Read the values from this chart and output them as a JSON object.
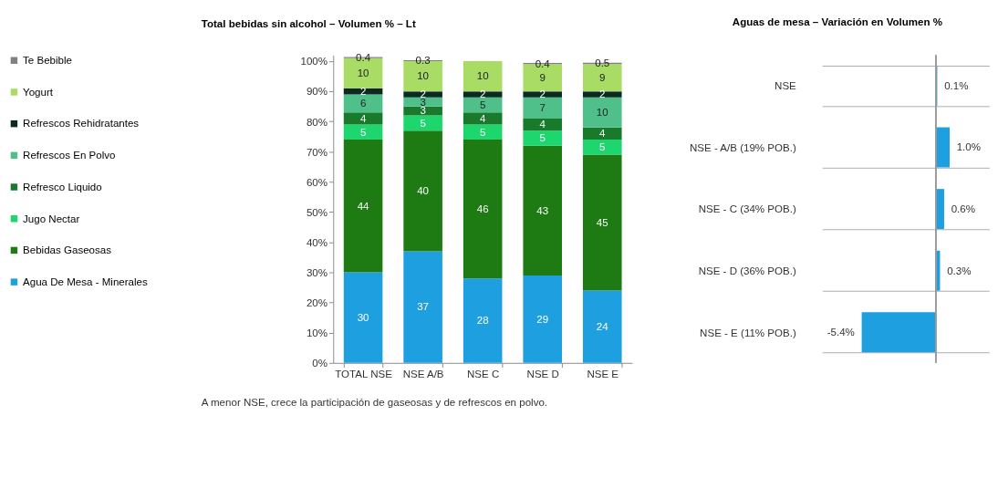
{
  "chart_data": [
    {
      "type": "bar",
      "stacked": true,
      "title": "Total bebidas sin alcohol – Volumen % – Lt",
      "categories": [
        "TOTAL NSE",
        "NSE A/B",
        "NSE C",
        "NSE D",
        "NSE E"
      ],
      "series": [
        {
          "name": "Agua De Mesa - Minerales",
          "color": "#1ea0e0",
          "values": [
            30,
            37,
            28,
            29,
            24
          ]
        },
        {
          "name": "Bebidas Gaseosas",
          "color": "#1e7b14",
          "values": [
            44,
            40,
            46,
            43,
            45
          ]
        },
        {
          "name": "Jugo Nectar",
          "color": "#1ed66e",
          "values": [
            5,
            5,
            5,
            5,
            5
          ]
        },
        {
          "name": "Refresco Liquido",
          "color": "#187a2a",
          "values": [
            4,
            3,
            4,
            4,
            4
          ]
        },
        {
          "name": "Refrescos En Polvo",
          "color": "#50c08a",
          "values": [
            6,
            3,
            5,
            7,
            10
          ]
        },
        {
          "name": "Refrescos Rehidratantes",
          "color": "#0b2a22",
          "values": [
            2,
            2,
            2,
            2,
            2
          ]
        },
        {
          "name": "Yogurt",
          "color": "#a8dc64",
          "values": [
            10,
            10,
            10,
            9,
            9
          ]
        },
        {
          "name": "Te Bebible",
          "color": "#808080",
          "values": [
            0.4,
            0.3,
            null,
            0.4,
            0.5
          ]
        }
      ],
      "ylim": [
        0,
        102
      ],
      "yticks": [
        {
          "value": 0,
          "label": "0%"
        },
        {
          "value": 10,
          "label": "10%"
        },
        {
          "value": 20,
          "label": "20%"
        },
        {
          "value": 30,
          "label": "30%"
        },
        {
          "value": 40,
          "label": "40%"
        },
        {
          "value": 50,
          "label": "50%"
        },
        {
          "value": 60,
          "label": "60%"
        },
        {
          "value": 70,
          "label": "70%"
        },
        {
          "value": 80,
          "label": "80%"
        },
        {
          "value": 90,
          "label": "90%"
        },
        {
          "value": 100,
          "label": "100%"
        }
      ],
      "data_labels": true,
      "legend": "left",
      "grid": false,
      "annotations": [
        "A menor NSE, crece la participación de gaseosas y de refrescos en polvo."
      ]
    },
    {
      "type": "bar",
      "orientation": "horizontal",
      "title": "Aguas de mesa – Variación en Volumen %",
      "categories": [
        "NSE",
        "NSE - A/B  (19% POB.)",
        "NSE - C    (34% POB.)",
        "NSE - D    (36% POB.)",
        "NSE - E    (11% POB.)"
      ],
      "values": [
        0.1,
        1.0,
        0.6,
        0.3,
        -5.4
      ],
      "color": "#1ea0e0",
      "value_labels": [
        "0.1%",
        "1.0%",
        "0.6%",
        "0.3%",
        "-5.4%"
      ],
      "grid": "y"
    }
  ]
}
